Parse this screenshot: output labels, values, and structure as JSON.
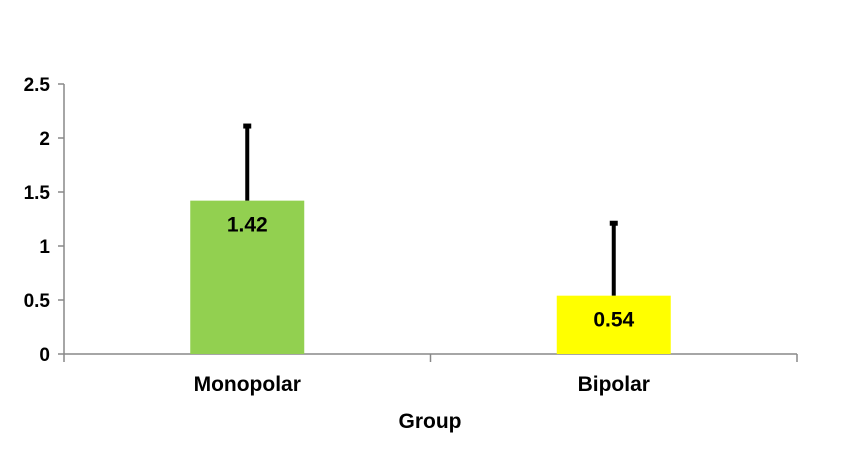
{
  "chart_data": {
    "type": "bar",
    "title": "",
    "xlabel": "Group",
    "ylabel": "",
    "ylim": [
      0,
      2.5
    ],
    "yticks": [
      "0",
      "0.5",
      "1",
      "1.5",
      "2",
      "2.5"
    ],
    "ytick_values": [
      0,
      0.5,
      1,
      1.5,
      2,
      2.5
    ],
    "categories": [
      "Monopolar",
      "Bipolar"
    ],
    "values": [
      1.42,
      0.54
    ],
    "data_labels": [
      "1.42",
      "0.54"
    ],
    "error_upper": [
      2.12,
      1.22
    ],
    "colors": [
      "#92d050",
      "#ffff00"
    ],
    "grid": false,
    "legend": "none"
  }
}
